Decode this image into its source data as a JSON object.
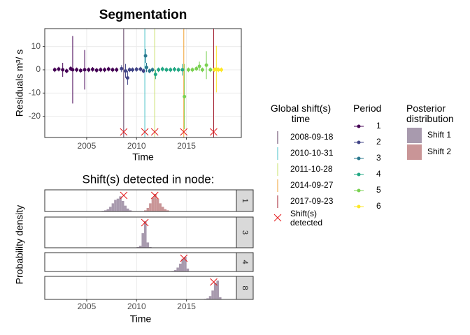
{
  "chart_data": [
    {
      "type": "scatter",
      "title": "Segmentation",
      "xlabel": "Time",
      "ylabel": "Residuals m³/ s",
      "xlim": [
        2000.8,
        2020.5
      ],
      "ylim": [
        -29.1,
        17.7
      ],
      "xticks": [
        2005,
        2010,
        2015
      ],
      "yticks": [
        -20,
        -10,
        0,
        10
      ],
      "grid": true,
      "legend_title": "Period",
      "series": [
        {
          "name": "1",
          "color": "#440154",
          "x": [
            2001.8,
            2002.2,
            2002.6,
            2003.0,
            2003.4,
            2003.6,
            2004.0,
            2004.4,
            2004.8,
            2005.2,
            2005.6,
            2006.0,
            2006.4,
            2006.8,
            2007.2,
            2007.6,
            2008.0
          ],
          "values": [
            0,
            0.3,
            0,
            -0.5,
            0.5,
            0,
            0,
            -0.3,
            0,
            0,
            0.2,
            -0.2,
            0,
            0,
            0.3,
            0,
            0
          ],
          "errors": [
            1,
            1,
            3,
            1,
            1,
            14.5,
            1,
            1,
            8.5,
            1,
            1,
            1,
            1,
            1,
            1,
            1,
            1
          ]
        },
        {
          "name": "2",
          "color": "#414487",
          "x": [
            2008.5,
            2008.9,
            2009.1,
            2009.3,
            2009.6,
            2010.0,
            2010.4,
            2010.7
          ],
          "values": [
            0.5,
            -0.5,
            -3.5,
            0,
            0,
            0.2,
            0.3,
            -0.5
          ],
          "errors": [
            1.5,
            3,
            3,
            1,
            1,
            1,
            1,
            1
          ]
        },
        {
          "name": "3",
          "color": "#2A788E",
          "x": [
            2010.9,
            2011.0,
            2011.3,
            2011.6
          ],
          "values": [
            6,
            1,
            -0.5,
            0
          ],
          "errors": [
            3,
            2,
            1,
            1
          ]
        },
        {
          "name": "4",
          "color": "#22A884",
          "x": [
            2011.9,
            2012.2,
            2012.6,
            2013.0,
            2013.4,
            2013.8,
            2014.2,
            2014.6
          ],
          "values": [
            -2,
            0,
            0.3,
            0,
            0,
            0.2,
            0,
            0
          ],
          "errors": [
            2,
            1,
            1,
            1,
            1,
            1,
            1,
            2.5
          ]
        },
        {
          "name": "5",
          "color": "#7AD151",
          "x": [
            2014.8,
            2015.2,
            2015.6,
            2016.0,
            2016.3,
            2016.6,
            2017.0,
            2017.4
          ],
          "values": [
            -11.5,
            0,
            0,
            0.5,
            1.5,
            0,
            2,
            0
          ],
          "errors": [
            14,
            1,
            1,
            1,
            2,
            1,
            6,
            1
          ]
        },
        {
          "name": "6",
          "color": "#FDE725",
          "x": [
            2017.8,
            2018.0,
            2018.2,
            2018.5
          ],
          "values": [
            0,
            0.3,
            0,
            0
          ],
          "errors": [
            1,
            10,
            1,
            1
          ]
        }
      ],
      "shifts": {
        "title": "Global shift(s) time",
        "dates": [
          "2008-09-18",
          "2010-10-31",
          "2011-10-28",
          "2014-09-27",
          "2017-09-23"
        ],
        "colors": [
          "#5B3A5E",
          "#47C1C8",
          "#C9E06A",
          "#F0A030",
          "#A0182A"
        ],
        "marker_label": "Shift(s) detected",
        "marker_color": "#E41A1C"
      }
    },
    {
      "type": "density",
      "title": "Shift(s) detected in node:",
      "xlabel": "Time",
      "ylabel": "Probability density",
      "xlim": [
        2000.8,
        2020.0
      ],
      "xticks": [
        2005,
        2010,
        2015
      ],
      "grid": true,
      "legend_title": "Posterior distribution",
      "series": [
        {
          "name": "Shift 1",
          "color": "#A89AAE"
        },
        {
          "name": "Shift 2",
          "color": "#C99597"
        }
      ],
      "facets": [
        {
          "label": "1",
          "detected": [
            "2008-09-18",
            "2011-10-28"
          ],
          "distributions": [
            {
              "bins": [
                2006.5,
                2006.75,
                2007.0,
                2007.25,
                2007.5,
                2007.75,
                2008.0,
                2008.25,
                2008.5,
                2008.75,
                2009.0,
                2009.25,
                2009.5
              ],
              "counts": [
                1,
                2,
                4,
                8,
                14,
                20,
                22,
                26,
                18,
                10,
                5,
                2
              ]
            },
            {
              "bins": [
                2010.75,
                2011.0,
                2011.25,
                2011.5,
                2011.75,
                2012.0,
                2012.25,
                2012.5,
                2012.75,
                2013.0,
                2013.25
              ],
              "counts": [
                2,
                6,
                14,
                24,
                30,
                22,
                14,
                8,
                4,
                2
              ]
            }
          ]
        },
        {
          "label": "3",
          "detected": [
            "2010-10-31"
          ],
          "distributions": [
            {
              "bins": [
                2010.0,
                2010.25,
                2010.5,
                2010.75,
                2011.0,
                2011.25,
                2011.5
              ],
              "counts": [
                1,
                3,
                22,
                40,
                8,
                1
              ]
            }
          ]
        },
        {
          "label": "4",
          "detected": [
            "2014-09-27"
          ],
          "distributions": [
            {
              "bins": [
                2013.5,
                2013.75,
                2014.0,
                2014.25,
                2014.5,
                2014.75,
                2015.0,
                2015.25
              ],
              "counts": [
                1,
                3,
                8,
                16,
                26,
                30,
                6
              ]
            }
          ]
        },
        {
          "label": "8",
          "detected": [
            "2017-09-23"
          ],
          "distributions": [
            {
              "bins": [
                2016.75,
                2017.0,
                2017.25,
                2017.5,
                2017.75,
                2018.0,
                2018.25,
                2018.5
              ],
              "counts": [
                1,
                2,
                6,
                16,
                30,
                34,
                4
              ]
            }
          ]
        }
      ]
    }
  ]
}
